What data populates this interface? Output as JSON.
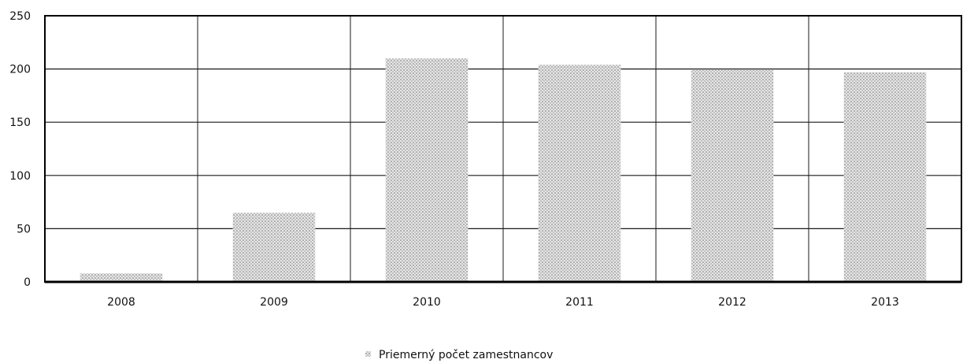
{
  "chart_data": {
    "type": "bar",
    "title": "",
    "xlabel": "",
    "ylabel": "",
    "categories": [
      "2008",
      "2009",
      "2010",
      "2011",
      "2012",
      "2013"
    ],
    "series": [
      {
        "name": "Priemerný počet zamestnancov",
        "values": [
          8,
          65,
          210,
          204,
          199,
          197
        ],
        "color": "#b8b8b8"
      }
    ],
    "ylim": [
      0,
      250
    ],
    "yticks": [
      "0",
      "50",
      "100",
      "150",
      "200",
      "250"
    ],
    "grid": true,
    "legend_position": "bottom-center"
  }
}
